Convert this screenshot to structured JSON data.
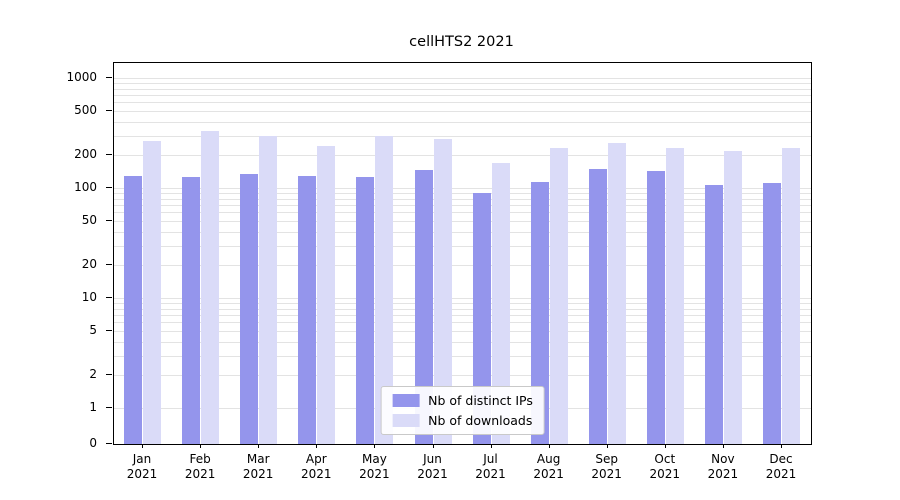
{
  "chart_data": {
    "type": "bar",
    "title": "cellHTS2 2021",
    "year": "2021",
    "categories": [
      "Jan",
      "Feb",
      "Mar",
      "Apr",
      "May",
      "Jun",
      "Jul",
      "Aug",
      "Sep",
      "Oct",
      "Nov",
      "Dec"
    ],
    "series": [
      {
        "name": "Nb of distinct IPs",
        "color": "#9495ec",
        "values": [
          130,
          127,
          133,
          129,
          126,
          145,
          90,
          113,
          150,
          142,
          106,
          112
        ]
      },
      {
        "name": "Nb of downloads",
        "color": "#dadbf8",
        "values": [
          270,
          330,
          300,
          240,
          300,
          280,
          170,
          230,
          255,
          230,
          215,
          230
        ]
      }
    ],
    "xlabel": "",
    "ylabel": "",
    "yscale": "log-with-zero",
    "ylim": [
      0,
      1300
    ],
    "yticks": [
      0,
      1,
      2,
      5,
      10,
      20,
      50,
      100,
      200,
      500,
      1000
    ],
    "gridlines": [
      1,
      2,
      3,
      4,
      5,
      6,
      7,
      8,
      9,
      10,
      20,
      30,
      40,
      50,
      60,
      70,
      80,
      90,
      100,
      200,
      300,
      400,
      500,
      600,
      700,
      800,
      900,
      1000
    ],
    "grid": "horizontal",
    "legend_position": "bottom-center-inside",
    "colors": {
      "grid": "#e3e3e3",
      "axis": "#000000",
      "text": "#000000"
    }
  }
}
